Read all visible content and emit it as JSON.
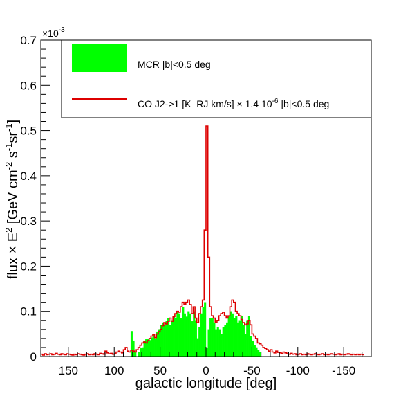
{
  "chart_data": {
    "type": "bar",
    "xlabel": "galactic longitude [deg]",
    "ylabel_parts": [
      "flux ",
      "×",
      " E",
      "2",
      " [GeV cm",
      "-2",
      " s",
      "-1",
      "sr",
      "-1",
      "]"
    ],
    "y_multiplier": {
      "base": "×10",
      "exp": "-3"
    },
    "xlim": [
      180,
      -180
    ],
    "ylim": [
      0,
      0.7
    ],
    "x_ticks": [
      {
        "v": 150,
        "label": "150"
      },
      {
        "v": 100,
        "label": "100"
      },
      {
        "v": 50,
        "label": "50"
      },
      {
        "v": 0,
        "label": "0"
      },
      {
        "v": -50,
        "label": "-50"
      },
      {
        "v": -100,
        "label": "-100"
      },
      {
        "v": -150,
        "label": "-150"
      }
    ],
    "y_ticks": [
      {
        "v": 0,
        "label": "0"
      },
      {
        "v": 0.1,
        "label": "0.1"
      },
      {
        "v": 0.2,
        "label": "0.2"
      },
      {
        "v": 0.3,
        "label": "0.3"
      },
      {
        "v": 0.4,
        "label": "0.4"
      },
      {
        "v": 0.5,
        "label": "0.5"
      },
      {
        "v": 0.6,
        "label": "0.6"
      },
      {
        "v": 0.7,
        "label": "0.7"
      }
    ],
    "grid": false,
    "legend_position": "top-right",
    "series": [
      {
        "name": "MCR |b|<0.5 deg",
        "kind": "filled-histogram",
        "color": "#00ff00",
        "bin_width": 2,
        "bins_x": [
          82,
          80,
          78,
          74,
          72,
          70,
          68,
          66,
          64,
          62,
          60,
          58,
          56,
          54,
          52,
          50,
          48,
          46,
          44,
          42,
          40,
          38,
          36,
          34,
          32,
          30,
          28,
          26,
          24,
          22,
          20,
          18,
          16,
          14,
          12,
          10,
          8,
          6,
          4,
          2,
          0,
          -2,
          -4,
          -6,
          -8,
          -10,
          -12,
          -14,
          -16,
          -18,
          -20,
          -22,
          -24,
          -26,
          -28,
          -30,
          -32,
          -34,
          -36,
          -38,
          -40,
          -42,
          -44,
          -46,
          -48,
          -50,
          -52,
          -54,
          -56,
          -58
        ],
        "values": [
          0.056,
          0.035,
          0.01,
          0.01,
          0.018,
          0.02,
          0.035,
          0.038,
          0.038,
          0.036,
          0.042,
          0.047,
          0.04,
          0.055,
          0.06,
          0.07,
          0.075,
          0.07,
          0.078,
          0.085,
          0.07,
          0.08,
          0.09,
          0.085,
          0.1,
          0.095,
          0.085,
          0.11,
          0.095,
          0.088,
          0.1,
          0.095,
          0.078,
          0.1,
          0.08,
          0.04,
          0.065,
          0.095,
          0.11,
          0.12,
          0.018,
          0.06,
          0.085,
          0.085,
          0.075,
          0.06,
          0.065,
          0.06,
          0.05,
          0.065,
          0.07,
          0.075,
          0.09,
          0.1,
          0.095,
          0.085,
          0.09,
          0.075,
          0.08,
          0.09,
          0.07,
          0.05,
          0.08,
          0.09,
          0.045,
          0.035,
          0.025,
          0.02,
          0.015,
          0.01
        ]
      },
      {
        "name": "CO J2->1 [K_RJ km/s] × 1.4 10⁻⁶ |b|<0.5 deg",
        "legend_parts": [
          "CO J2->1 [K_RJ km/s] ",
          "×",
          " 1.4 10",
          "-6",
          " |b|<0.5 deg"
        ],
        "kind": "step-line",
        "color": "#dd0000",
        "bin_width": 2,
        "bins_x": [
          180,
          178,
          176,
          174,
          172,
          170,
          168,
          166,
          164,
          162,
          160,
          158,
          156,
          154,
          152,
          150,
          148,
          146,
          144,
          142,
          140,
          138,
          136,
          134,
          132,
          130,
          128,
          126,
          124,
          122,
          120,
          118,
          116,
          114,
          112,
          110,
          108,
          106,
          104,
          102,
          100,
          98,
          96,
          94,
          92,
          90,
          88,
          86,
          84,
          82,
          80,
          78,
          76,
          74,
          72,
          70,
          68,
          66,
          64,
          62,
          60,
          58,
          56,
          54,
          52,
          50,
          48,
          46,
          44,
          42,
          40,
          38,
          36,
          34,
          32,
          30,
          28,
          26,
          24,
          22,
          20,
          18,
          16,
          14,
          12,
          10,
          8,
          6,
          4,
          2,
          0,
          -2,
          -4,
          -6,
          -8,
          -10,
          -12,
          -14,
          -16,
          -18,
          -20,
          -22,
          -24,
          -26,
          -28,
          -30,
          -32,
          -34,
          -36,
          -38,
          -40,
          -42,
          -44,
          -46,
          -48,
          -50,
          -52,
          -54,
          -56,
          -58,
          -60,
          -62,
          -64,
          -66,
          -68,
          -70,
          -72,
          -74,
          -76,
          -78,
          -80,
          -82,
          -84,
          -86,
          -88,
          -90,
          -92,
          -94,
          -96,
          -98,
          -100,
          -102,
          -104,
          -106,
          -108,
          -110,
          -112,
          -114,
          -116,
          -118,
          -120,
          -122,
          -124,
          -126,
          -128,
          -130,
          -132,
          -134,
          -136,
          -138,
          -140,
          -142,
          -144,
          -146,
          -148,
          -150,
          -152,
          -154,
          -156,
          -158,
          -160,
          -162,
          -164,
          -166,
          -168,
          -170,
          -172,
          -174,
          -176,
          -178
        ],
        "values": [
          0.005,
          0.003,
          0.006,
          0.004,
          0.005,
          0.006,
          0.004,
          0.005,
          0.007,
          0.005,
          0.004,
          0.006,
          0.005,
          0.004,
          0.006,
          0.005,
          0.004,
          0.003,
          0.005,
          0.004,
          0.006,
          0.005,
          0.004,
          0.003,
          0.005,
          0.006,
          0.004,
          0.005,
          0.004,
          0.006,
          0.005,
          0.004,
          0.007,
          0.006,
          0.005,
          0.012,
          0.008,
          0.006,
          0.007,
          0.005,
          0.006,
          0.01,
          0.012,
          0.01,
          0.008,
          0.015,
          0.02,
          0.012,
          0.01,
          0.014,
          0.012,
          0.01,
          0.015,
          0.02,
          0.025,
          0.03,
          0.032,
          0.03,
          0.035,
          0.04,
          0.045,
          0.048,
          0.042,
          0.05,
          0.055,
          0.06,
          0.068,
          0.075,
          0.072,
          0.078,
          0.085,
          0.078,
          0.088,
          0.095,
          0.1,
          0.098,
          0.11,
          0.12,
          0.115,
          0.12,
          0.125,
          0.115,
          0.095,
          0.11,
          0.085,
          0.075,
          0.095,
          0.11,
          0.125,
          0.28,
          0.51,
          0.22,
          0.11,
          0.09,
          0.085,
          0.075,
          0.08,
          0.09,
          0.095,
          0.098,
          0.09,
          0.085,
          0.09,
          0.11,
          0.125,
          0.12,
          0.1,
          0.095,
          0.09,
          0.082,
          0.075,
          0.07,
          0.072,
          0.08,
          0.07,
          0.05,
          0.045,
          0.04,
          0.03,
          0.028,
          0.025,
          0.02,
          0.018,
          0.015,
          0.012,
          0.015,
          0.01,
          0.008,
          0.012,
          0.009,
          0.008,
          0.007,
          0.01,
          0.008,
          0.006,
          0.005,
          0.007,
          0.005,
          0.006,
          0.004,
          0.005,
          0.006,
          0.004,
          0.005,
          0.004,
          0.006,
          0.005,
          0.004,
          0.005,
          0.006,
          0.005,
          0.004,
          0.005,
          0.006,
          0.004,
          0.005,
          0.004,
          0.005,
          0.006,
          0.005,
          0.004,
          0.005,
          0.006,
          0.004,
          0.005,
          0.004,
          0.005,
          0.006,
          0.005,
          0.004,
          0.005,
          0.004,
          0.005,
          0.004,
          0.005,
          0.004
        ]
      }
    ]
  }
}
